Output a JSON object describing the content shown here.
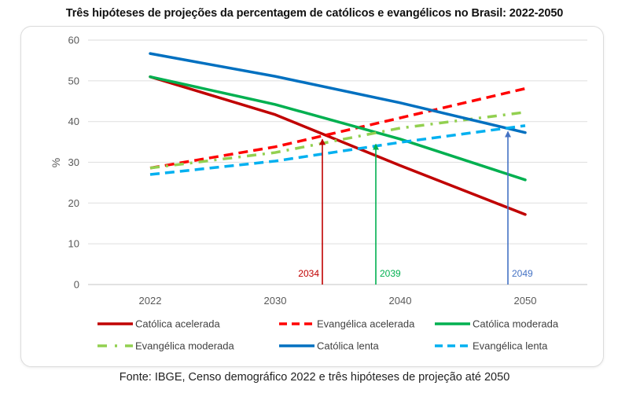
{
  "title": "Três hipóteses de projeções da percentagem de católicos e evangélicos no Brasil: 2022-2050",
  "source": "Fonte: IBGE, Censo demográfico 2022 e três hipóteses de projeção até 2050",
  "chart_data": {
    "type": "line",
    "title": "Três hipóteses de projeções da percentagem de católicos e evangélicos no Brasil: 2022-2050",
    "xlabel": "",
    "ylabel": "%",
    "categories": [
      "2022",
      "2030",
      "2040",
      "2050"
    ],
    "ylim": [
      0,
      60
    ],
    "yticks": [
      0,
      10,
      20,
      30,
      40,
      50,
      60
    ],
    "grid": true,
    "legend_position": "bottom",
    "series": [
      {
        "name": "Católica acelerada",
        "color": "#c00000",
        "style": "solid",
        "values": [
          51.0,
          41.7,
          29.2,
          17.2
        ]
      },
      {
        "name": "Evangélica acelerada",
        "color": "#ff0000",
        "style": "dashed",
        "values": [
          28.6,
          33.8,
          40.9,
          48.1
        ]
      },
      {
        "name": "Católica moderada",
        "color": "#00b050",
        "style": "solid",
        "values": [
          51.0,
          44.2,
          35.7,
          25.7
        ]
      },
      {
        "name": "Evangélica moderada",
        "color": "#92d050",
        "style": "dash-dot",
        "values": [
          28.6,
          32.4,
          38.4,
          42.3
        ]
      },
      {
        "name": "Católica lenta",
        "color": "#0070c0",
        "style": "solid",
        "values": [
          56.7,
          51.1,
          44.6,
          37.3
        ]
      },
      {
        "name": "Evangélica lenta",
        "color": "#00b0f0",
        "style": "dashed",
        "values": [
          27.0,
          30.3,
          34.9,
          39.0
        ]
      }
    ],
    "annotations": [
      {
        "label": "2034",
        "color": "#c00000",
        "x_position": 2034,
        "y_target": 36.0,
        "label_side": "left"
      },
      {
        "label": "2039",
        "color": "#00b050",
        "x_position": 2039,
        "y_target": 34.8,
        "label_side": "right"
      },
      {
        "label": "2049",
        "color": "#4472c4",
        "x_position": 2049,
        "y_target": 37.9,
        "label_side": "right"
      }
    ]
  }
}
